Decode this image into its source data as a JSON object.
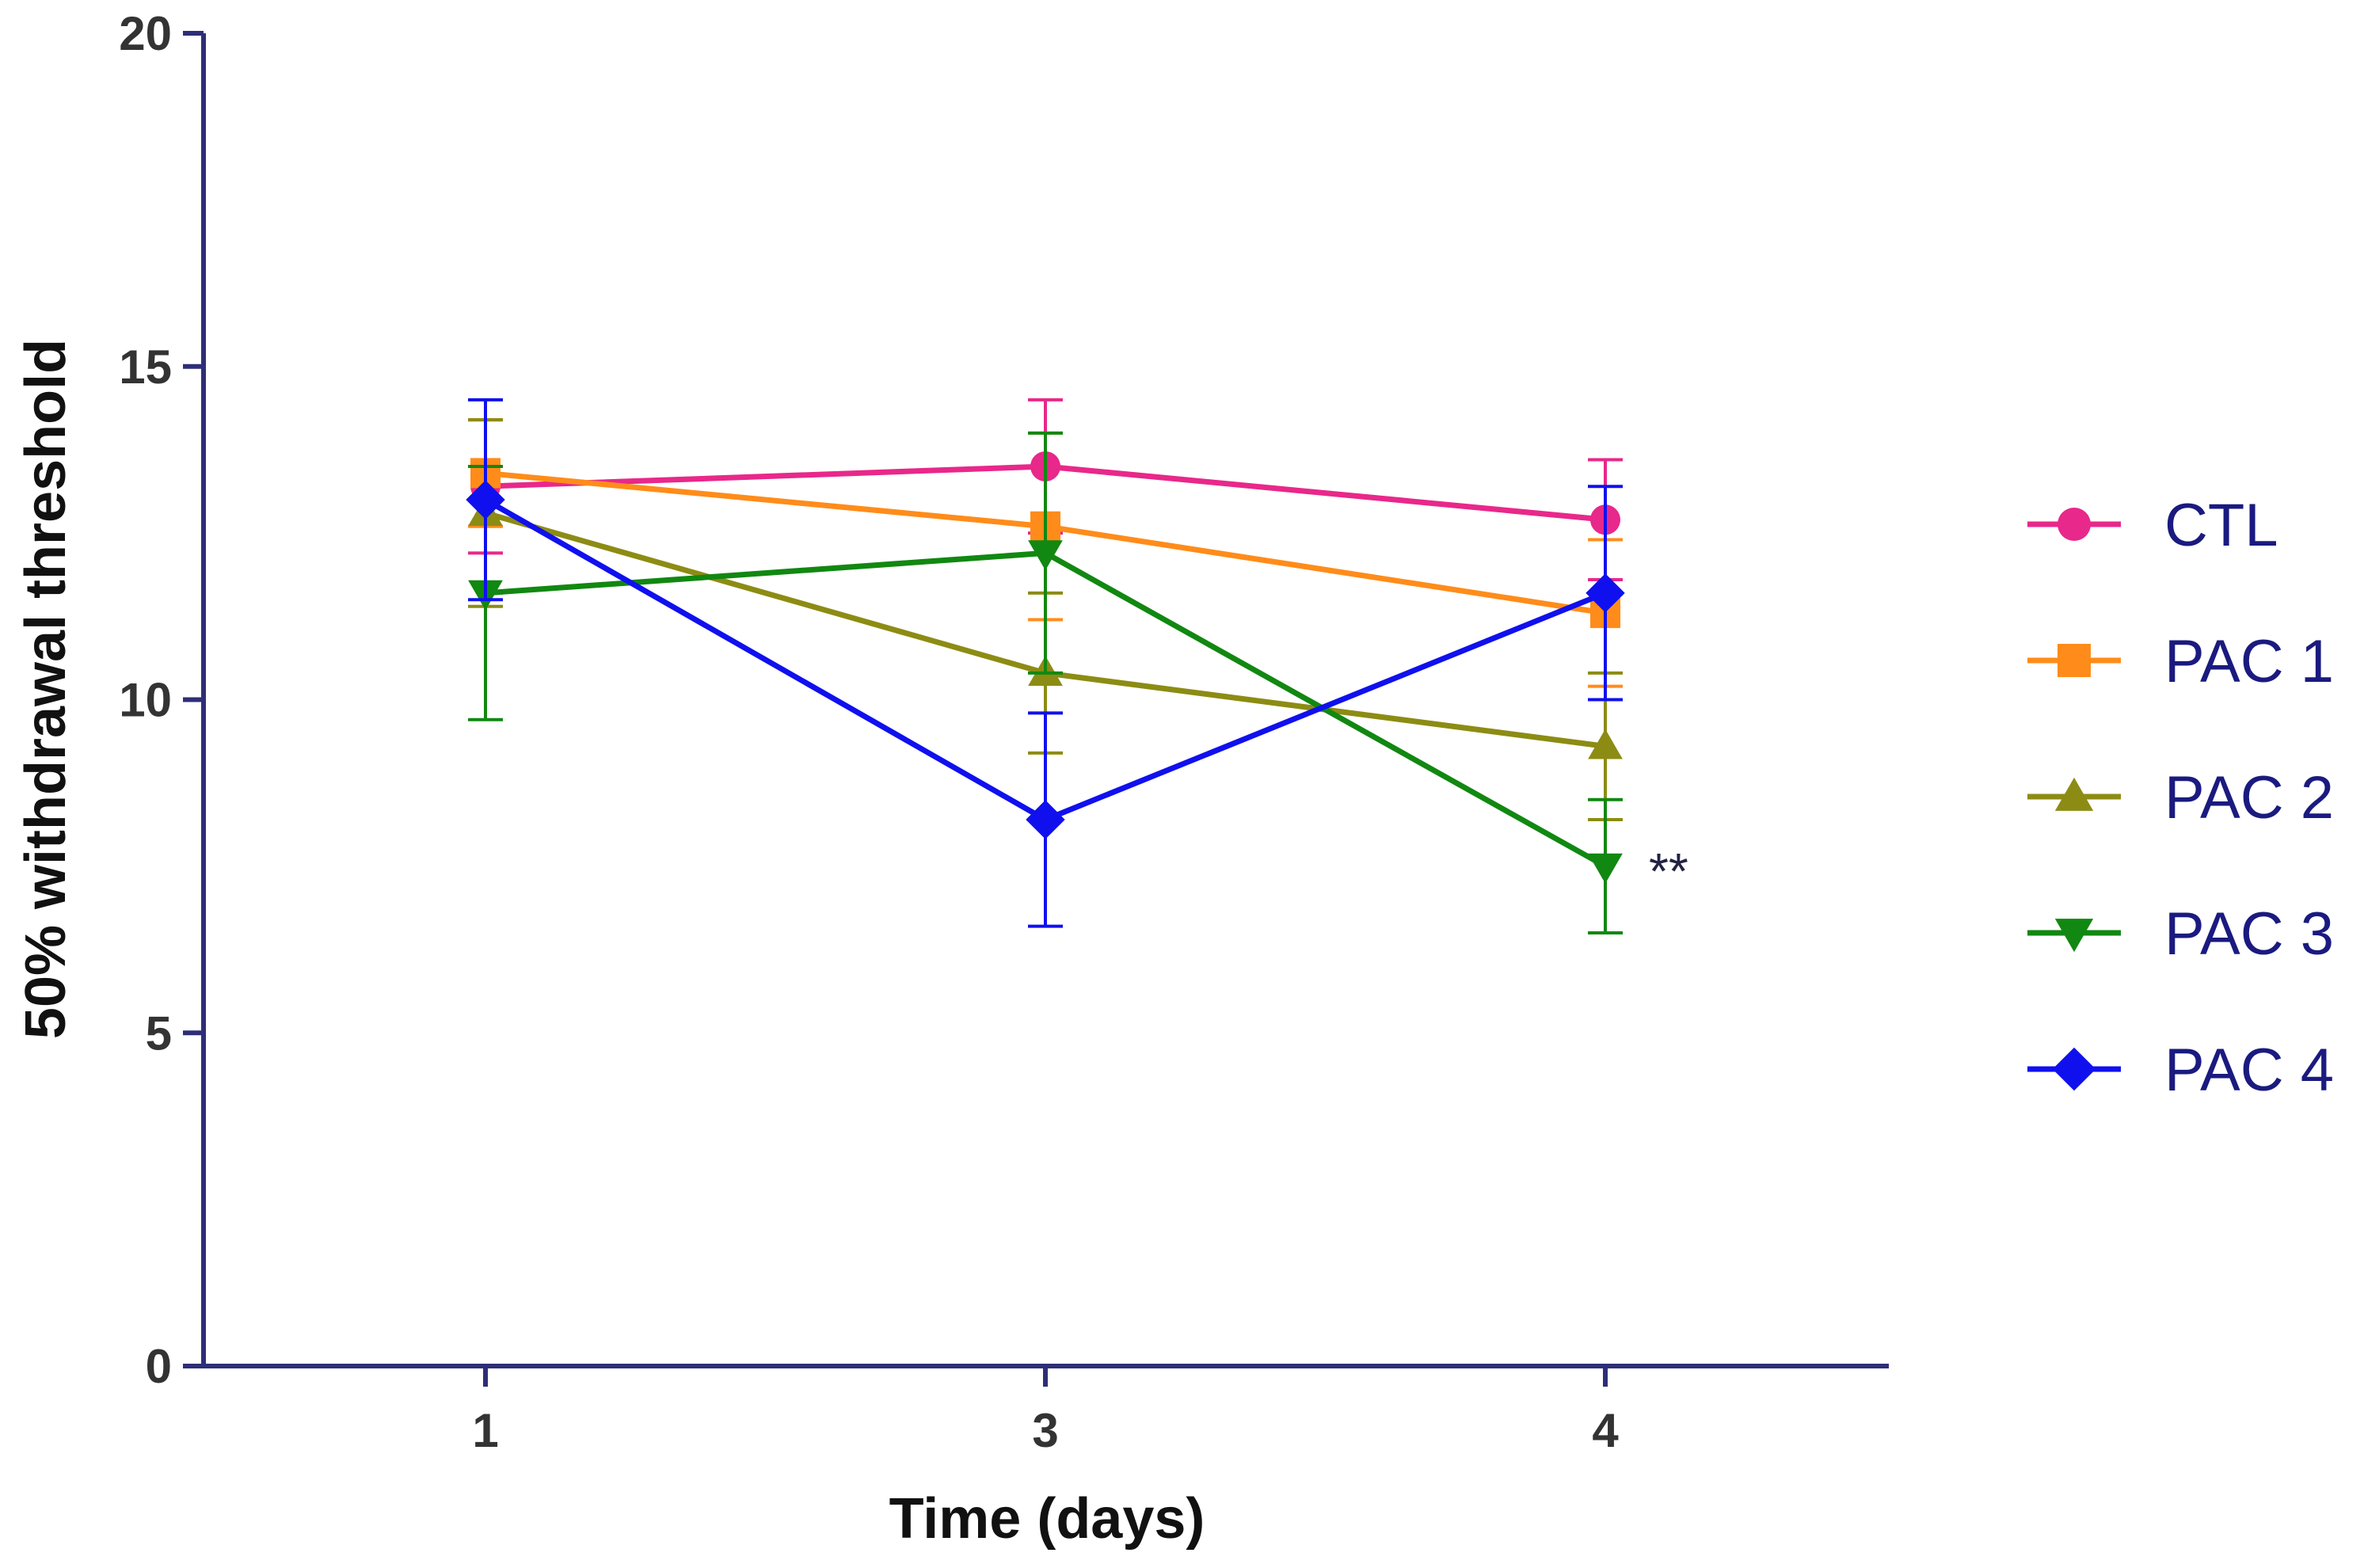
{
  "chart_data": {
    "type": "line",
    "title": "",
    "xlabel": "Time (days)",
    "ylabel": "50% withdrawal threshold",
    "categories": [
      "1",
      "3",
      "4"
    ],
    "ylim": [
      0,
      20
    ],
    "yticks": [
      "0",
      "5",
      "10",
      "15",
      "20"
    ],
    "grid": false,
    "legend_position": "right",
    "series": [
      {
        "name": "CTL",
        "color": "#e8288a",
        "marker": "circle",
        "values": [
          13.2,
          13.5,
          12.7
        ],
        "errors": [
          1.0,
          1.0,
          0.9
        ]
      },
      {
        "name": "PAC 1",
        "color": "#ff8c1a",
        "marker": "square",
        "values": [
          13.4,
          12.6,
          11.3
        ],
        "errors": [
          0.8,
          1.4,
          1.1
        ]
      },
      {
        "name": "PAC 2",
        "color": "#8c8c14",
        "marker": "triangle-up",
        "values": [
          12.8,
          10.4,
          9.3
        ],
        "errors": [
          1.4,
          1.2,
          1.1
        ]
      },
      {
        "name": "PAC 3",
        "color": "#118811",
        "marker": "triangle-down",
        "values": [
          11.6,
          12.2,
          7.5
        ],
        "errors": [
          1.9,
          1.8,
          1.0
        ]
      },
      {
        "name": "PAC 4",
        "color": "#1010ee",
        "marker": "diamond",
        "values": [
          13.0,
          8.2,
          11.6
        ],
        "errors": [
          1.5,
          1.6,
          1.6
        ]
      }
    ],
    "annotations": [
      {
        "text": "**",
        "series": "PAC 3",
        "category": "4"
      }
    ]
  }
}
